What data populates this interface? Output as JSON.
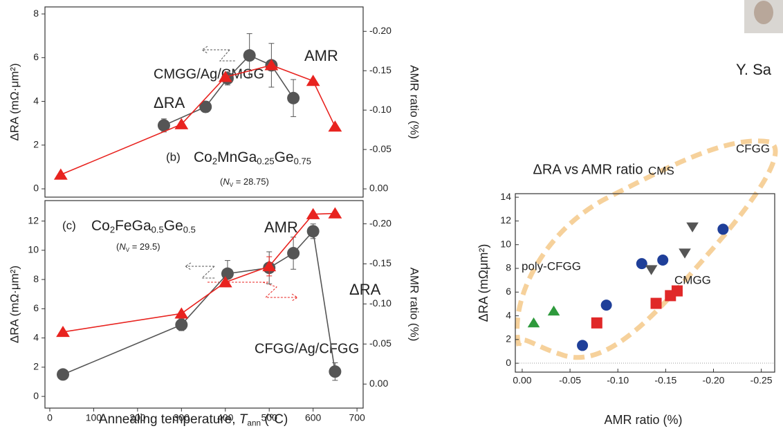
{
  "caption": "Y. Sa",
  "chart_data": [
    {
      "type": "line",
      "panel": "(b)",
      "formula": [
        "Co",
        "2",
        "MnGa",
        "0.25",
        "Ge",
        "0.75"
      ],
      "nv": [
        "(",
        "N",
        "V",
        " = 28.75)"
      ],
      "annotations": [
        "CMGG/Ag/CMGG"
      ],
      "y_label": "ΔRA (mΩ·μm²)",
      "y2_label": "AMR ratio (%)",
      "xlim": [
        -11,
        714
      ],
      "ylim": [
        -0.38,
        8.32
      ],
      "y2lim": [
        0.0105,
        -0.231
      ],
      "yticks": [
        0,
        2,
        4,
        6,
        8
      ],
      "y2ticks": [
        {
          "value": 0,
          "label": "0.00"
        },
        -0.05,
        {
          "value": -0.1,
          "label": "-0.10"
        },
        -0.15,
        {
          "value": -0.2,
          "label": "-0.20"
        }
      ],
      "series": [
        {
          "name": "ΔRA",
          "color": "#555555",
          "marker": "circle",
          "axis": "y",
          "x": [
            260,
            355,
            405,
            455,
            505,
            555
          ],
          "values": [
            2.9,
            3.75,
            5.05,
            6.1,
            5.65,
            4.15
          ],
          "errors": [
            0.3,
            0.25,
            0.3,
            1.0,
            1.0,
            0.85
          ]
        },
        {
          "name": "AMR",
          "color": "#e8231f",
          "marker": "triangle",
          "axis": "y2",
          "x": [
            25,
            300,
            400,
            505,
            600,
            650
          ],
          "values": [
            -0.018,
            -0.082,
            -0.142,
            -0.157,
            -0.137,
            -0.079
          ]
        }
      ]
    },
    {
      "type": "line",
      "panel": "(c)",
      "formula": [
        "Co",
        "2",
        "FeGa",
        "0.5",
        "Ge",
        "0.5"
      ],
      "nv": [
        "(",
        "N",
        "V",
        " = 29.5)"
      ],
      "annotations": [
        "CFGG/Ag/CFGG"
      ],
      "x_label": [
        "Annealing temperature, ",
        "T",
        "ann",
        " (°C)"
      ],
      "y_label": "ΔRA (mΩ·μm²)",
      "y2_label": "AMR ratio (%)",
      "xlim": [
        -11,
        714
      ],
      "ylim": [
        -0.8,
        13.4
      ],
      "y2lim": [
        0.03,
        -0.229
      ],
      "xticks": [
        0,
        100,
        200,
        300,
        400,
        500,
        600,
        700
      ],
      "yticks": [
        0,
        2,
        4,
        6,
        8,
        10,
        12
      ],
      "y2ticks": [
        {
          "value": 0,
          "label": "0.00"
        },
        -0.05,
        {
          "value": -0.1,
          "label": "-0.10"
        },
        -0.15,
        {
          "value": -0.2,
          "label": "-0.20"
        }
      ],
      "series": [
        {
          "name": "ΔRA",
          "color": "#555555",
          "marker": "circle",
          "axis": "y",
          "x": [
            30,
            300,
            405,
            500,
            555,
            600,
            650
          ],
          "values": [
            1.5,
            4.9,
            8.4,
            8.8,
            9.8,
            11.3,
            1.7
          ],
          "errors": [
            null,
            0.4,
            0.9,
            1.1,
            1.1,
            0.5,
            0.6
          ]
        },
        {
          "name": "AMR",
          "color": "#e8231f",
          "marker": "triangle",
          "axis": "y2",
          "x": [
            30,
            300,
            400,
            500,
            600,
            650
          ],
          "values": [
            -0.065,
            -0.088,
            -0.127,
            -0.147,
            -0.212,
            -0.213
          ],
          "errors": [
            null,
            null,
            null,
            0.012,
            null,
            null
          ]
        }
      ]
    },
    {
      "type": "scatter",
      "title": "ΔRA vs AMR ratio",
      "x_label": "AMR ratio (%)",
      "y_label": "ΔRA (mΩμm²)",
      "xlim": [
        0.0072,
        -0.264
      ],
      "ylim": [
        -0.75,
        14.3
      ],
      "xticks": [
        {
          "value": 0,
          "label": "0.00"
        },
        -0.05,
        {
          "value": -0.1,
          "label": "-0.10"
        },
        -0.15,
        {
          "value": -0.2,
          "label": "-0.20"
        },
        -0.25
      ],
      "yticks": [
        0,
        2,
        4,
        6,
        8,
        10,
        12,
        14
      ],
      "series": [
        {
          "name": "CFGG",
          "color": "#1f3f99",
          "marker": "circle",
          "x": [
            -0.063,
            -0.088,
            -0.125,
            -0.147,
            -0.21
          ],
          "values": [
            1.5,
            4.9,
            8.4,
            8.7,
            11.3
          ]
        },
        {
          "name": "CMGG",
          "color": "#e02828",
          "marker": "square",
          "x": [
            -0.078,
            -0.14,
            -0.155,
            -0.162
          ],
          "values": [
            3.4,
            5.05,
            5.7,
            6.1
          ]
        },
        {
          "name": "CMS",
          "color": "#555555",
          "marker": "down",
          "x": [
            -0.135,
            -0.17,
            -0.178
          ],
          "values": [
            7.9,
            9.3,
            11.5
          ]
        },
        {
          "name": "poly-CFGG",
          "color": "#2e9a3c",
          "marker": "triangle",
          "x": [
            -0.012,
            -0.033
          ],
          "values": [
            3.4,
            4.4
          ]
        }
      ]
    }
  ]
}
